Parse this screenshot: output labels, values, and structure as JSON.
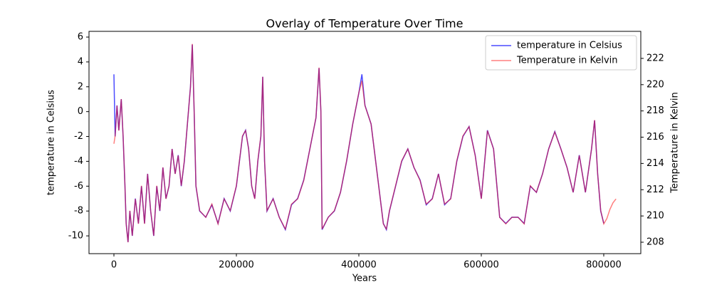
{
  "chart_data": {
    "type": "line",
    "title": "Overlay of Temperature Over Time",
    "x_label": "Years",
    "y_label": "temperature in Celsius",
    "y2_label": "Temperature in Kelvin",
    "y_label_color": "#0000ff",
    "y2_label_color": "#ff0000",
    "xlim": [
      -40700,
      860500
    ],
    "ylim": [
      -11.43,
      6.46
    ],
    "y2lim": [
      207.13,
      224.06
    ],
    "xticks": [
      0,
      200000,
      400000,
      600000,
      800000
    ],
    "yticks": [
      -10,
      -8,
      -6,
      -4,
      -2,
      0,
      2,
      4,
      6
    ],
    "y2ticks": [
      208,
      210,
      212,
      214,
      216,
      218,
      220,
      222
    ],
    "legend": "upper right",
    "series": [
      {
        "name": "temperature in Celsius",
        "color": "#0000ff",
        "alpha": 0.7,
        "axis": "y",
        "x": [
          0,
          2000,
          5000,
          8000,
          12000,
          15000,
          18000,
          20000,
          23000,
          26000,
          30000,
          35000,
          40000,
          45000,
          50000,
          55000,
          60000,
          65000,
          70000,
          75000,
          80000,
          85000,
          90000,
          95000,
          100000,
          105000,
          110000,
          115000,
          120000,
          125000,
          128000,
          131000,
          134000,
          140000,
          150000,
          160000,
          170000,
          180000,
          190000,
          200000,
          205000,
          210000,
          215000,
          220000,
          225000,
          230000,
          235000,
          240000,
          243000,
          246000,
          250000,
          260000,
          270000,
          280000,
          290000,
          300000,
          310000,
          320000,
          330000,
          335000,
          338000,
          340000,
          350000,
          360000,
          370000,
          380000,
          390000,
          400000,
          405000,
          410000,
          420000,
          430000,
          440000,
          445000,
          450000,
          460000,
          470000,
          480000,
          490000,
          500000,
          510000,
          520000,
          530000,
          540000,
          550000,
          560000,
          570000,
          580000,
          590000,
          600000,
          610000,
          620000,
          630000,
          640000,
          650000,
          660000,
          670000,
          680000,
          690000,
          700000,
          710000,
          720000,
          730000,
          740000,
          750000,
          760000,
          770000,
          780000,
          785000,
          790000,
          795000,
          800000
        ],
        "values": [
          3,
          -2,
          0.5,
          -1.5,
          1,
          -2,
          -6,
          -9,
          -10.5,
          -8,
          -10,
          -7,
          -9,
          -6,
          -9,
          -5,
          -8,
          -10,
          -6,
          -8,
          -4.5,
          -7,
          -6,
          -3,
          -5,
          -3.5,
          -6,
          -4,
          -1,
          2,
          5.4,
          0,
          -6,
          -8,
          -8.5,
          -7.5,
          -9,
          -7,
          -8,
          -6,
          -4,
          -2,
          -1.5,
          -3,
          -6,
          -7,
          -4,
          -2,
          2.8,
          -4,
          -8,
          -7,
          -8.5,
          -9.5,
          -7.5,
          -7,
          -5.5,
          -3,
          -0.5,
          3.5,
          0,
          -9.5,
          -8.5,
          -8,
          -6.5,
          -4,
          -1,
          1.5,
          3,
          0.5,
          -1,
          -5,
          -9,
          -9.5,
          -8,
          -6,
          -4,
          -3,
          -4.5,
          -5.5,
          -7.5,
          -7,
          -5,
          -7.5,
          -7,
          -4,
          -2,
          -1.2,
          -3.5,
          -7,
          -1.5,
          -3,
          -8.5,
          -9,
          -8.5,
          -8.5,
          -9,
          -6,
          -6.5,
          -5,
          -3,
          -1.6,
          -3,
          -4.5,
          -6.5,
          -3.5,
          -6.5,
          -3,
          -0.7,
          -5,
          -8,
          -9
        ]
      },
      {
        "name": "Temperature in Kelvin",
        "color": "#ff0000",
        "alpha": 0.5,
        "axis": "y2",
        "x": [
          0,
          2000,
          5000,
          8000,
          12000,
          15000,
          18000,
          20000,
          23000,
          26000,
          30000,
          35000,
          40000,
          45000,
          50000,
          55000,
          60000,
          65000,
          70000,
          75000,
          80000,
          85000,
          90000,
          95000,
          100000,
          105000,
          110000,
          115000,
          120000,
          125000,
          128000,
          131000,
          134000,
          140000,
          150000,
          160000,
          170000,
          180000,
          190000,
          200000,
          205000,
          210000,
          215000,
          220000,
          225000,
          230000,
          235000,
          240000,
          243000,
          246000,
          250000,
          260000,
          270000,
          280000,
          290000,
          300000,
          310000,
          320000,
          330000,
          335000,
          338000,
          340000,
          350000,
          360000,
          370000,
          380000,
          390000,
          400000,
          405000,
          410000,
          420000,
          430000,
          440000,
          445000,
          450000,
          460000,
          470000,
          480000,
          490000,
          500000,
          510000,
          520000,
          530000,
          540000,
          550000,
          560000,
          570000,
          580000,
          590000,
          600000,
          610000,
          620000,
          630000,
          640000,
          650000,
          660000,
          670000,
          680000,
          690000,
          700000,
          710000,
          720000,
          730000,
          740000,
          750000,
          760000,
          770000,
          780000,
          785000,
          790000,
          795000,
          800000,
          805000,
          810000,
          815000,
          820000
        ],
        "values": [
          215.5,
          216.1,
          218.4,
          216.5,
          218.9,
          216.1,
          212.3,
          209.4,
          208.0,
          210.4,
          208.5,
          211.3,
          209.4,
          212.3,
          209.4,
          213.2,
          210.4,
          208.5,
          212.3,
          210.4,
          213.7,
          211.3,
          212.3,
          215.1,
          213.2,
          214.6,
          212.3,
          214.2,
          217.0,
          219.8,
          223.1,
          218.0,
          212.3,
          210.4,
          209.9,
          210.9,
          209.4,
          211.3,
          210.4,
          212.3,
          214.2,
          216.1,
          216.5,
          215.1,
          212.3,
          211.3,
          214.2,
          216.1,
          220.6,
          214.2,
          210.4,
          211.3,
          209.9,
          209.0,
          210.9,
          211.3,
          212.7,
          215.1,
          217.5,
          221.3,
          218.0,
          209.0,
          209.9,
          210.4,
          211.8,
          214.2,
          217.0,
          219.4,
          220.3,
          218.4,
          217.0,
          213.2,
          209.4,
          209.0,
          210.4,
          212.3,
          214.2,
          215.1,
          213.7,
          212.7,
          210.9,
          211.3,
          213.2,
          210.9,
          211.3,
          214.2,
          216.1,
          216.8,
          214.6,
          211.3,
          216.5,
          215.1,
          209.9,
          209.4,
          209.9,
          209.9,
          209.4,
          212.3,
          211.8,
          213.2,
          215.1,
          216.4,
          215.1,
          213.7,
          211.8,
          214.6,
          211.8,
          215.1,
          217.3,
          213.2,
          210.4,
          209.4,
          209.8,
          210.5,
          211.0,
          211.3
        ]
      }
    ]
  }
}
